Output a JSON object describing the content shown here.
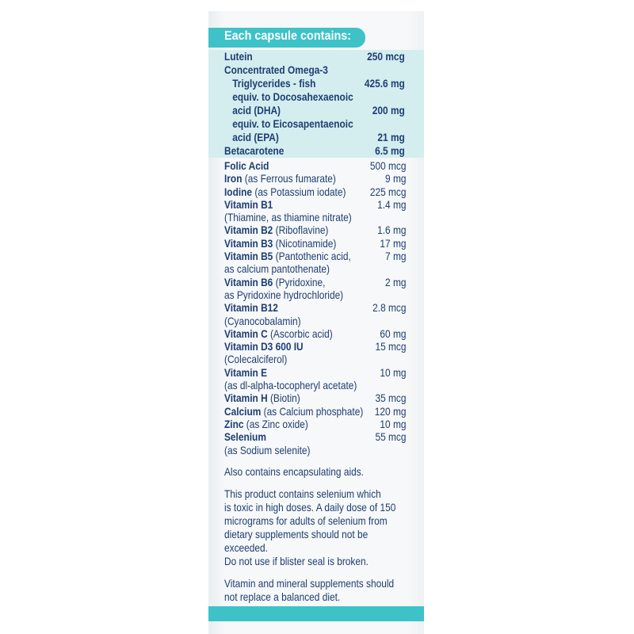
{
  "header": "Each capsule contains:",
  "highlighted_rows": [
    {
      "lines": [
        "Lutein"
      ],
      "amount": "250 mcg"
    },
    {
      "lines": [
        "Concentrated Omega-3"
      ]
    },
    {
      "lines": [
        "Triglycerides - fish"
      ],
      "amount": "425.6 mg",
      "indent": true
    },
    {
      "lines": [
        "equiv. to Docosahexaenoic",
        "acid (DHA)"
      ],
      "amount": "200 mg",
      "indent": true
    },
    {
      "lines": [
        "equiv. to Eicosapentaenoic",
        "acid (EPA)"
      ],
      "amount": "21 mg",
      "indent": true
    },
    {
      "lines": [
        "Betacarotene"
      ],
      "amount": "6.5 mg"
    }
  ],
  "rows": [
    {
      "name": "Folic Acid",
      "amount": "500 mcg"
    },
    {
      "name": "Iron",
      "detail": "(as Ferrous fumarate)",
      "amount": "9 mg"
    },
    {
      "name": "Iodine",
      "detail": "(as Potassium iodate)",
      "amount": "225 mcg"
    },
    {
      "name": "Vitamin B1",
      "detail2": "(Thiamine, as thiamine nitrate)",
      "amount": "1.4 mg"
    },
    {
      "name": "Vitamin B2",
      "detail": "(Riboflavine)",
      "amount": "1.6 mg"
    },
    {
      "name": "Vitamin B3",
      "detail": "(Nicotinamide)",
      "amount": "17 mg"
    },
    {
      "name": "Vitamin B5",
      "detail": "(Pantothenic acid,",
      "detail2": "as calcium pantothenate)",
      "amount": "7 mg"
    },
    {
      "name": "Vitamin B6",
      "detail": "(Pyridoxine,",
      "detail2": "as Pyridoxine hydrochloride)",
      "amount": "2 mg"
    },
    {
      "name": "Vitamin B12",
      "detail2": "(Cyanocobalamin)",
      "amount": "2.8 mcg"
    },
    {
      "name": "Vitamin C",
      "detail": "(Ascorbic acid)",
      "amount": "60 mg"
    },
    {
      "name": "Vitamin D3 600 IU",
      "detail2": "(Colecalciferol)",
      "amount": "15 mcg"
    },
    {
      "name": "Vitamin E",
      "detail2": "(as dl-alpha-tocopheryl acetate)",
      "amount": "10 mg"
    },
    {
      "name": "Vitamin H",
      "detail": "(Biotin)",
      "amount": "35 mcg"
    },
    {
      "name": "Calcium",
      "detail": "(as Calcium phosphate)",
      "amount": "120 mg"
    },
    {
      "name": "Zinc",
      "detail": "(as Zinc oxide)",
      "amount": "10 mg"
    },
    {
      "name": "Selenium",
      "detail2": "(as Sodium selenite)",
      "amount": "55 mcg"
    }
  ],
  "notes": [
    [
      "Also contains encapsulating aids."
    ],
    [
      "This product contains selenium which",
      "is toxic in high doses. A daily dose of 150",
      "micrograms for adults of selenium from",
      "dietary supplements should not be exceeded.",
      "Do not use if blister seal is broken."
    ],
    [
      "Vitamin and mineral supplements should",
      "not replace a balanced diet."
    ]
  ]
}
